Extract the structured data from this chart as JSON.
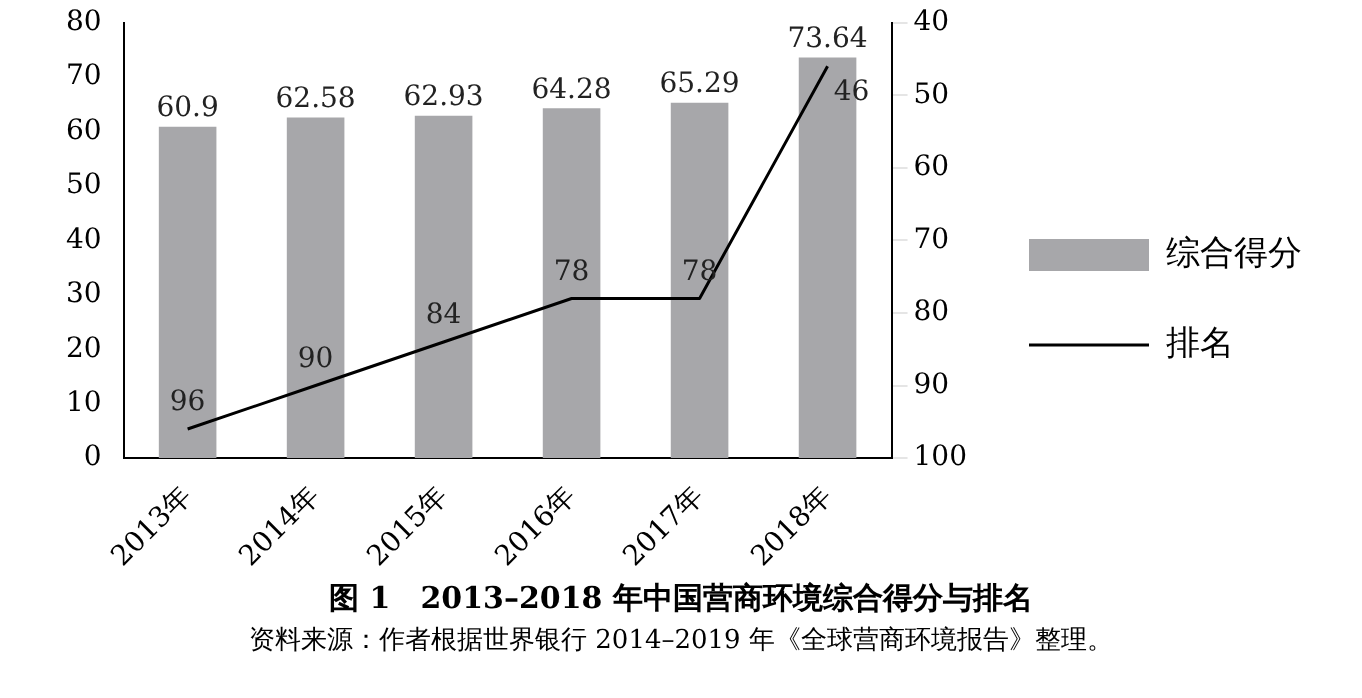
{
  "chart_data": {
    "type": "bar",
    "title": "图 1　2013–2018 年中国营商环境综合得分与排名",
    "annotations": [
      "资料来源：作者根据世界银行 2014–2019 年《全球营商环境报告》整理。"
    ],
    "categories": [
      "2013年",
      "2014年",
      "2015年",
      "2016年",
      "2017年",
      "2018年"
    ],
    "series": [
      {
        "name": "综合得分",
        "color": "#a7a7aa",
        "values": [
          60.9,
          62.58,
          62.93,
          64.28,
          65.29,
          73.64
        ]
      },
      {
        "name": "排名",
        "type": "line",
        "axis": "y2",
        "color": "#000000",
        "values": [
          96,
          90,
          84,
          78,
          78,
          46
        ]
      }
    ],
    "ylim": [
      0,
      80
    ],
    "yticks": [
      0,
      10,
      20,
      30,
      40,
      50,
      60,
      70,
      80
    ],
    "y2lim": [
      100,
      40
    ],
    "y2ticks": [
      40,
      50,
      60,
      70,
      80,
      90,
      100
    ],
    "grid": false,
    "legend": "right",
    "data_labels": true,
    "marker": "none",
    "line_style": "solid"
  }
}
